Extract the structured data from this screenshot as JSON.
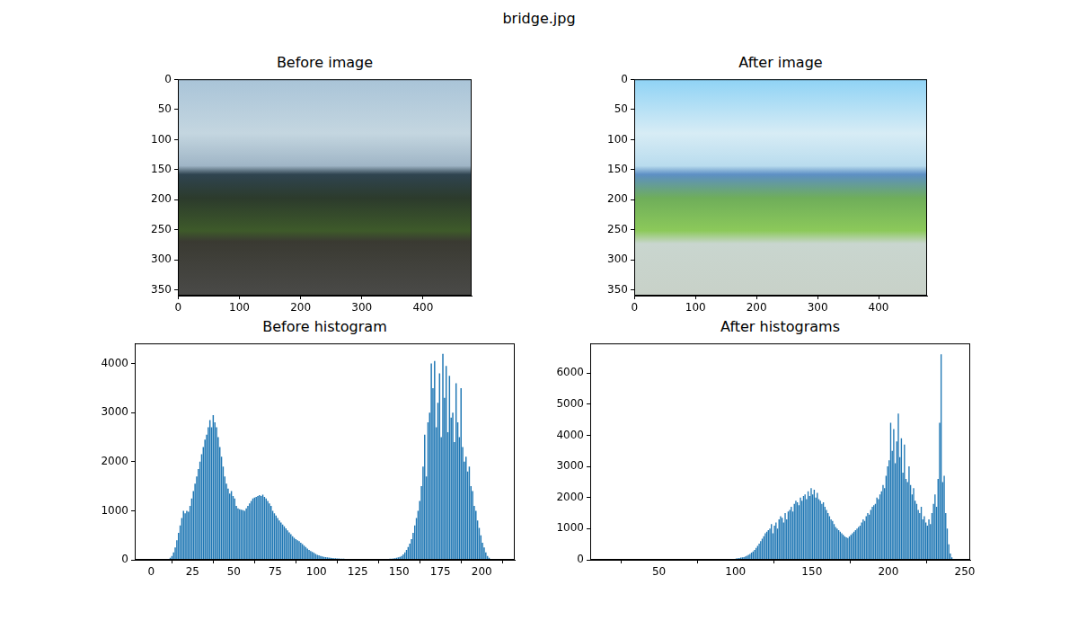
{
  "title": "bridge.jpg",
  "chart_data": [
    {
      "type": "image",
      "title": "Before image",
      "xlim": [
        -0.5,
        479.5
      ],
      "ylim": [
        359.5,
        -0.5
      ],
      "xticks": [
        0,
        100,
        200,
        300,
        400
      ],
      "yticks": [
        0,
        50,
        100,
        150,
        200,
        250,
        300,
        350
      ],
      "grid": false
    },
    {
      "type": "image",
      "title": "After image",
      "xlim": [
        -0.5,
        479.5
      ],
      "ylim": [
        359.5,
        -0.5
      ],
      "xticks": [
        0,
        100,
        200,
        300,
        400
      ],
      "yticks": [
        0,
        50,
        100,
        150,
        200,
        250,
        300,
        350
      ],
      "grid": false
    },
    {
      "type": "histogram",
      "title": "Before histogram",
      "color": "#1f77b4",
      "grid": false,
      "xlim": [
        -10,
        220
      ],
      "ylim": [
        0,
        4410
      ],
      "xticks": [
        0,
        25,
        50,
        75,
        100,
        125,
        150,
        175,
        200
      ],
      "yticks": [
        0,
        1000,
        2000,
        3000,
        4000
      ],
      "bins": [
        10,
        11,
        12,
        13,
        14,
        15,
        16,
        17,
        18,
        19,
        20,
        21,
        22,
        23,
        24,
        25,
        26,
        27,
        28,
        29,
        30,
        31,
        32,
        33,
        34,
        35,
        36,
        37,
        38,
        39,
        40,
        41,
        42,
        43,
        44,
        45,
        46,
        47,
        48,
        49,
        50,
        51,
        52,
        53,
        54,
        55,
        56,
        57,
        58,
        59,
        60,
        61,
        62,
        63,
        64,
        65,
        66,
        67,
        68,
        69,
        70,
        71,
        72,
        73,
        74,
        75,
        76,
        77,
        78,
        79,
        80,
        81,
        82,
        83,
        84,
        85,
        86,
        87,
        88,
        89,
        90,
        91,
        92,
        93,
        94,
        95,
        96,
        97,
        98,
        99,
        100,
        101,
        102,
        103,
        104,
        105,
        106,
        107,
        108,
        109,
        110,
        111,
        112,
        113,
        114,
        115,
        116,
        117,
        118,
        119,
        120,
        121,
        122,
        123,
        124,
        125,
        126,
        127,
        128,
        129,
        130,
        131,
        132,
        133,
        134,
        135,
        136,
        137,
        138,
        139,
        140,
        141,
        142,
        143,
        144,
        145,
        146,
        147,
        148,
        149,
        150,
        151,
        152,
        153,
        154,
        155,
        156,
        157,
        158,
        159,
        160,
        161,
        162,
        163,
        164,
        165,
        166,
        167,
        168,
        169,
        170,
        171,
        172,
        173,
        174,
        175,
        176,
        177,
        178,
        179,
        180,
        181,
        182,
        183,
        184,
        185,
        186,
        187,
        188,
        189,
        190,
        191,
        192,
        193,
        194,
        195,
        196,
        197,
        198,
        199,
        200,
        201,
        202,
        203,
        204,
        205,
        206
      ],
      "values": [
        20,
        40,
        80,
        150,
        250,
        400,
        550,
        700,
        850,
        1000,
        950,
        1000,
        980,
        1100,
        1250,
        1400,
        1550,
        1700,
        1850,
        2000,
        2150,
        2300,
        2450,
        2550,
        2700,
        2850,
        2700,
        2950,
        2800,
        2700,
        2500,
        2300,
        2100,
        1900,
        1700,
        1550,
        1450,
        1350,
        1400,
        1300,
        1250,
        1100,
        1050,
        1030,
        1020,
        1010,
        1000,
        1050,
        1100,
        1150,
        1200,
        1250,
        1270,
        1280,
        1300,
        1320,
        1300,
        1330,
        1280,
        1250,
        1200,
        1150,
        1100,
        1000,
        950,
        900,
        850,
        800,
        760,
        720,
        680,
        640,
        600,
        560,
        520,
        480,
        450,
        420,
        400,
        380,
        350,
        320,
        290,
        260,
        230,
        200,
        180,
        160,
        140,
        120,
        100,
        90,
        80,
        70,
        60,
        55,
        50,
        45,
        40,
        35,
        32,
        30,
        28,
        26,
        25,
        24,
        22,
        20,
        20,
        18,
        18,
        17,
        16,
        16,
        15,
        15,
        14,
        14,
        13,
        13,
        13,
        12,
        12,
        12,
        12,
        12,
        12,
        13,
        13,
        14,
        15,
        16,
        18,
        20,
        22,
        25,
        28,
        32,
        40,
        50,
        60,
        80,
        110,
        150,
        200,
        260,
        330,
        420,
        550,
        700,
        850,
        1000,
        1200,
        1500,
        1900,
        2550,
        1700,
        2800,
        3000,
        4000,
        3500,
        4050,
        2700,
        3200,
        3800,
        2500,
        4200,
        3300,
        3950,
        2600,
        3750,
        2900,
        3000,
        2400,
        3600,
        2800,
        2500,
        3500,
        2300,
        2000,
        2100,
        1800,
        1900,
        1500,
        1400,
        1100,
        1000,
        800,
        650,
        500,
        350,
        250,
        150,
        80,
        40,
        15
      ]
    },
    {
      "type": "histogram",
      "title": "After histograms",
      "color": "#1f77b4",
      "grid": false,
      "xlim": [
        5,
        253.5
      ],
      "ylim": [
        0,
        6950
      ],
      "xticks": [
        50,
        100,
        150,
        200,
        250
      ],
      "yticks": [
        0,
        1000,
        2000,
        3000,
        4000,
        5000,
        6000
      ],
      "bins": [
        95,
        96,
        97,
        98,
        99,
        100,
        101,
        102,
        103,
        104,
        105,
        106,
        107,
        108,
        109,
        110,
        111,
        112,
        113,
        114,
        115,
        116,
        117,
        118,
        119,
        120,
        121,
        122,
        123,
        124,
        125,
        126,
        127,
        128,
        129,
        130,
        131,
        132,
        133,
        134,
        135,
        136,
        137,
        138,
        139,
        140,
        141,
        142,
        143,
        144,
        145,
        146,
        147,
        148,
        149,
        150,
        151,
        152,
        153,
        154,
        155,
        156,
        157,
        158,
        159,
        160,
        161,
        162,
        163,
        164,
        165,
        166,
        167,
        168,
        169,
        170,
        171,
        172,
        173,
        174,
        175,
        176,
        177,
        178,
        179,
        180,
        181,
        182,
        183,
        184,
        185,
        186,
        187,
        188,
        189,
        190,
        191,
        192,
        193,
        194,
        195,
        196,
        197,
        198,
        199,
        200,
        201,
        202,
        203,
        204,
        205,
        206,
        207,
        208,
        209,
        210,
        211,
        212,
        213,
        214,
        215,
        216,
        217,
        218,
        219,
        220,
        221,
        222,
        223,
        224,
        225,
        226,
        227,
        228,
        229,
        230,
        231,
        232,
        233,
        234,
        235,
        236,
        237,
        238,
        239,
        240,
        241,
        242,
        243
      ],
      "values": [
        10,
        15,
        20,
        25,
        30,
        40,
        50,
        60,
        70,
        80,
        90,
        110,
        130,
        160,
        190,
        230,
        270,
        320,
        380,
        450,
        520,
        600,
        680,
        760,
        850,
        900,
        950,
        1000,
        1150,
        850,
        1100,
        1200,
        1000,
        1300,
        1400,
        1350,
        1200,
        1500,
        1300,
        1550,
        1600,
        1700,
        1550,
        1800,
        1900,
        1850,
        1750,
        2000,
        1900,
        2050,
        2100,
        1950,
        2200,
        2050,
        2300,
        2100,
        2250,
        2000,
        2150,
        1950,
        1900,
        1800,
        1850,
        1700,
        1600,
        1500,
        1400,
        1300,
        1250,
        1150,
        1050,
        1000,
        950,
        900,
        850,
        800,
        750,
        720,
        700,
        750,
        800,
        850,
        900,
        950,
        1000,
        1050,
        1100,
        1200,
        1300,
        1250,
        1400,
        1500,
        1450,
        1600,
        1700,
        1750,
        1800,
        2000,
        1950,
        2100,
        2200,
        2400,
        2300,
        2700,
        3000,
        3200,
        4400,
        3500,
        4200,
        3100,
        3800,
        4700,
        3300,
        3900,
        2800,
        3700,
        2600,
        2500,
        3000,
        2400,
        2100,
        2300,
        1900,
        1800,
        1600,
        1500,
        1700,
        1300,
        1400,
        1200,
        1100,
        1300,
        1150,
        1500,
        1800,
        2100,
        1700,
        2600,
        4400,
        6600,
        2500,
        2700,
        1500,
        1000,
        500,
        200,
        80,
        20
      ]
    }
  ]
}
